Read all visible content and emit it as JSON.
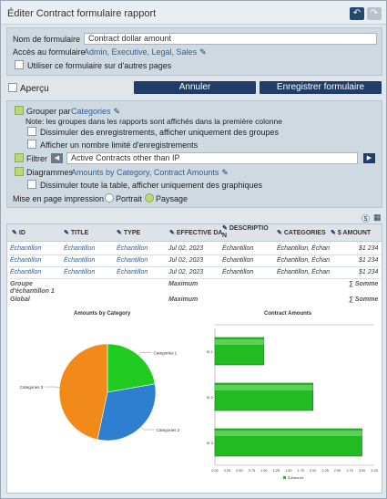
{
  "window": {
    "title": "Éditer Contract formulaire rapport",
    "undo_icon": "undo-icon",
    "redo_icon": "redo-icon"
  },
  "form": {
    "name_label": "Nom de formulaire",
    "name_value": "Contract dollar amount",
    "access_label": "Accès au formulaire",
    "access_value": "Admin, Executive, Legal, Sales",
    "reuse_label": "Utiliser ce formulaire sur d'autres pages"
  },
  "actions": {
    "preview_label": "Aperçu",
    "cancel_label": "Annuler",
    "save_label": "Enregistrer formulaire"
  },
  "options": {
    "group_by_label": "Grouper par",
    "group_by_value": "Categories",
    "group_note": "Note: les groupes dans les rapports sont affichés dans la première colonne",
    "hide_records_label": "Dissimuler des enregistrements, afficher uniquement des groupes",
    "limit_records_label": "Afficher un nombre limité d'enregistrements",
    "filter_label": "Filtrer",
    "filter_value": "Active Contracts other than IP",
    "charts_label": "Diagrammes",
    "charts_value": "Amounts by Category, Contract Amounts",
    "hide_table_label": "Dissimuler toute la table, afficher uniquement des graphiques",
    "layout_label": "Mise en page impression",
    "portrait_label": "Portrait",
    "landscape_label": "Paysage"
  },
  "report": {
    "columns": [
      "ID",
      "TITLE",
      "TYPE",
      "EFFECTIVE DA",
      "DESCRIPTIO N",
      "CATEGORIES",
      "$ AMOUNT"
    ],
    "rows": [
      [
        "Échantillon",
        "Échantillon",
        "Échantillon",
        "Jul 02, 2023",
        "Échantillon",
        "Échantillon, Échan",
        "$1 234"
      ],
      [
        "Échantillon",
        "Échantillon",
        "Échantillon",
        "Jul 02, 2023",
        "Échantillon",
        "Échantillon, Échan",
        "$1 234"
      ],
      [
        "Échantillon",
        "Échantillon",
        "Échantillon",
        "Jul 02, 2023",
        "Échantillon",
        "Échantillon, Échan",
        "$1 234"
      ]
    ],
    "group_label": "Groupe d'échantillon 1",
    "group_agg": "Maximum",
    "group_sum": "∑ Somme",
    "global_label": "Global",
    "global_agg": "Maximum",
    "global_sum": "∑ Somme"
  },
  "chart_data": [
    {
      "type": "pie",
      "title": "Amounts by Category",
      "categories": [
        "Categories 1",
        "Categories 2",
        "Categories 3"
      ],
      "values": [
        1,
        1.4,
        2.1
      ],
      "colors": [
        "#1fcc1f",
        "#2f7fd0",
        "#f28a1a"
      ]
    },
    {
      "type": "bar",
      "title": "Contract Amounts",
      "categories": [
        "ID 1",
        "ID 2",
        "ID 3"
      ],
      "values": [
        1.0,
        2.0,
        3.0
      ],
      "xticks": [
        "0.00",
        "0.25",
        "0.50",
        "0.75",
        "1.00",
        "1.25",
        "1.50",
        "1.75",
        "2.00",
        "2.25",
        "2.50",
        "2.75",
        "3.00",
        "3.25"
      ],
      "xlim": [
        0,
        3.25
      ],
      "legend": "$ Amount",
      "colors": [
        "#22bb22"
      ]
    }
  ]
}
